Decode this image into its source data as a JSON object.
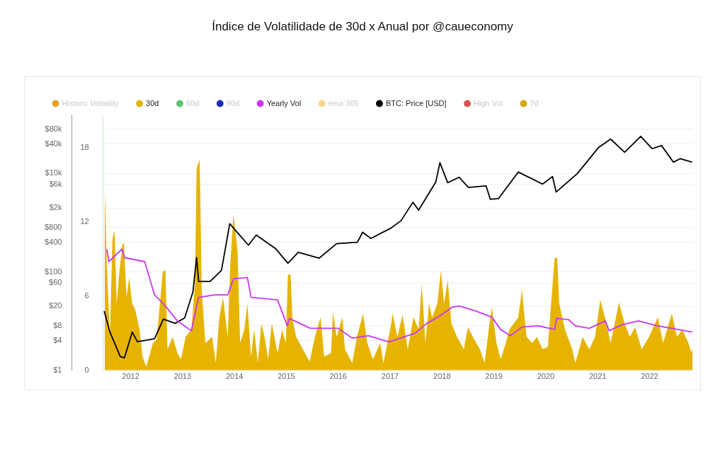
{
  "chart_data": {
    "type": "line",
    "title": "Índice de Volatilidade de 30d x Anual por @caueconomy",
    "legend": "top left",
    "grid": "y",
    "log": "y",
    "marker": "none",
    "line_style": "solid",
    "xlim": [
      2011.47,
      2022.84
    ],
    "xticks": [
      2012,
      2013,
      2014,
      2015,
      2016,
      2017,
      2018,
      2019,
      2020,
      2021,
      2022
    ],
    "ylim": [
      1,
      158000
    ],
    "yticks": [
      {
        "value": 1,
        "label": "$1"
      },
      {
        "value": 4,
        "label": "$4"
      },
      {
        "value": 8,
        "label": "$8"
      },
      {
        "value": 20,
        "label": "$20"
      },
      {
        "value": 60,
        "label": "$60"
      },
      {
        "value": 100,
        "label": "$100"
      },
      {
        "value": 400,
        "label": "$400"
      },
      {
        "value": 800,
        "label": "$800"
      },
      {
        "value": 2000,
        "label": "$2k"
      },
      {
        "value": 6000,
        "label": "$6k"
      },
      {
        "value": 10000,
        "label": "$10k"
      },
      {
        "value": 40000,
        "label": "$40k"
      },
      {
        "value": 80000,
        "label": "$80k"
      }
    ],
    "y2lim": [
      0,
      20.7
    ],
    "y2ticks": [
      0,
      6,
      12,
      18
    ],
    "series": [
      {
        "name": "Historic Volatility",
        "type": "line",
        "axis": "y2",
        "color": "#e8a02a"
      },
      {
        "name": "30d",
        "type": "area",
        "axis": "y2",
        "color": "#e6b400",
        "x": [
          2011.5,
          2011.54,
          2011.6,
          2011.65,
          2011.69,
          2011.73,
          2011.78,
          2011.84,
          2011.87,
          2011.92,
          2011.97,
          2012.03,
          2012.09,
          2012.17,
          2012.23,
          2012.3,
          2012.43,
          2012.5,
          2012.62,
          2012.67,
          2012.71,
          2012.81,
          2012.9,
          2012.97,
          2013.06,
          2013.17,
          2013.24,
          2013.27,
          2013.33,
          2013.37,
          2013.44,
          2013.57,
          2013.64,
          2013.71,
          2013.78,
          2013.87,
          2013.92,
          2013.98,
          2014.06,
          2014.11,
          2014.19,
          2014.25,
          2014.32,
          2014.38,
          2014.45,
          2014.52,
          2014.58,
          2014.65,
          2014.72,
          2014.83,
          2014.92,
          2014.99,
          2015.03,
          2015.08,
          2015.12,
          2015.19,
          2015.32,
          2015.45,
          2015.55,
          2015.66,
          2015.73,
          2015.86,
          2015.9,
          2015.97,
          2016.08,
          2016.13,
          2016.27,
          2016.36,
          2016.48,
          2016.56,
          2016.67,
          2016.81,
          2016.87,
          2017.01,
          2017.05,
          2017.14,
          2017.24,
          2017.34,
          2017.45,
          2017.55,
          2017.61,
          2017.68,
          2017.75,
          2017.81,
          2017.91,
          2017.98,
          2018.04,
          2018.11,
          2018.18,
          2018.29,
          2018.42,
          2018.5,
          2018.62,
          2018.73,
          2018.82,
          2018.93,
          2018.96,
          2019.05,
          2019.13,
          2019.23,
          2019.3,
          2019.47,
          2019.54,
          2019.63,
          2019.74,
          2019.83,
          2019.94,
          2020.04,
          2020.17,
          2020.22,
          2020.26,
          2020.37,
          2020.51,
          2020.57,
          2020.71,
          2020.84,
          2020.95,
          2021.05,
          2021.14,
          2021.25,
          2021.41,
          2021.52,
          2021.62,
          2021.72,
          2021.85,
          2021.99,
          2022.16,
          2022.26,
          2022.43,
          2022.53,
          2022.63,
          2022.75,
          2022.81,
          2022.83
        ],
        "values": [
          14.9,
          8.6,
          2.7,
          10.7,
          11.3,
          5.4,
          7.8,
          10.2,
          10.3,
          5.9,
          7.5,
          5.4,
          4.9,
          3.3,
          1.1,
          0.3,
          2.2,
          2.5,
          8.0,
          8.1,
          1.7,
          2.7,
          1.4,
          0.9,
          2.7,
          3.3,
          7.0,
          16.3,
          17.1,
          6.5,
          2.2,
          2.7,
          0.6,
          4.3,
          5.9,
          2.7,
          8.6,
          12.6,
          9.7,
          2.2,
          3.3,
          5.4,
          1.1,
          3.3,
          0.6,
          3.8,
          2.7,
          0.9,
          3.8,
          1.4,
          3.3,
          2.2,
          7.7,
          7.8,
          4.1,
          2.7,
          1.7,
          0.7,
          2.7,
          4.3,
          1.1,
          1.4,
          4.7,
          2.7,
          4.3,
          1.7,
          0.6,
          2.7,
          4.6,
          2.2,
          0.9,
          2.2,
          0.6,
          3.5,
          4.6,
          2.7,
          4.5,
          1.7,
          4.3,
          3.3,
          7.0,
          2.2,
          5.4,
          4.3,
          5.4,
          8.1,
          5.4,
          7.3,
          3.8,
          2.7,
          1.7,
          3.5,
          2.5,
          1.7,
          0.6,
          4.3,
          5.1,
          2.2,
          0.9,
          2.2,
          3.3,
          4.3,
          6.5,
          2.7,
          2.2,
          2.7,
          1.7,
          1.9,
          9.1,
          9.1,
          5.4,
          3.3,
          1.7,
          0.6,
          2.7,
          1.7,
          2.7,
          5.7,
          4.3,
          2.2,
          5.5,
          3.8,
          2.7,
          3.5,
          1.7,
          2.7,
          4.3,
          2.2,
          4.6,
          2.7,
          3.3,
          2.2,
          1.4,
          1.9
        ]
      },
      {
        "name": "60d",
        "type": "line",
        "axis": "y2",
        "color": "#5cc26a"
      },
      {
        "name": "90d",
        "type": "line",
        "axis": "y2",
        "color": "#1a2eb0"
      },
      {
        "name": "Yearly Vol",
        "type": "line",
        "axis": "y2",
        "color": "#c837f5",
        "x": [
          2011.54,
          2011.58,
          2011.83,
          2011.89,
          2012.27,
          2012.46,
          2012.63,
          2012.9,
          2013.17,
          2013.31,
          2013.62,
          2013.87,
          2013.98,
          2014.25,
          2014.32,
          2014.83,
          2015.02,
          2015.06,
          2015.46,
          2016.0,
          2016.27,
          2016.58,
          2016.98,
          2017.48,
          2017.71,
          2017.92,
          2018.19,
          2018.33,
          2018.65,
          2018.96,
          2019.13,
          2019.32,
          2019.54,
          2019.86,
          2020.17,
          2020.21,
          2020.44,
          2020.57,
          2020.84,
          2021.15,
          2021.22,
          2021.48,
          2021.79,
          2022.15,
          2022.42,
          2022.82
        ],
        "values": [
          9.8,
          8.8,
          9.8,
          9.1,
          8.8,
          6.1,
          5.4,
          4.0,
          3.2,
          5.9,
          6.1,
          6.1,
          7.4,
          7.5,
          5.9,
          5.7,
          3.6,
          4.2,
          3.4,
          3.4,
          2.6,
          2.8,
          2.3,
          3.0,
          3.8,
          4.3,
          5.1,
          5.2,
          4.8,
          4.3,
          3.3,
          2.8,
          3.5,
          3.6,
          3.3,
          4.2,
          4.1,
          3.6,
          3.4,
          4.0,
          3.2,
          3.7,
          4.0,
          3.6,
          3.4,
          3.1
        ]
      },
      {
        "name": "ema 365",
        "type": "line",
        "axis": "y2",
        "color": "#f5d68c"
      },
      {
        "name": "BTC: Price [USD]",
        "type": "line",
        "color": "#000000",
        "x": [
          2011.49,
          2011.6,
          2011.8,
          2011.88,
          2012.03,
          2012.13,
          2012.46,
          2012.63,
          2012.86,
          2013.04,
          2013.2,
          2013.27,
          2013.31,
          2013.53,
          2013.75,
          2013.91,
          2014.02,
          2014.27,
          2014.42,
          2014.79,
          2015.03,
          2015.23,
          2015.63,
          2015.97,
          2016.37,
          2016.47,
          2016.63,
          2017.01,
          2017.21,
          2017.44,
          2017.55,
          2017.88,
          2017.96,
          2018.11,
          2018.33,
          2018.51,
          2018.85,
          2018.93,
          2019.09,
          2019.47,
          2019.94,
          2020.13,
          2020.2,
          2020.61,
          2021.02,
          2021.25,
          2021.52,
          2021.83,
          2022.05,
          2022.23,
          2022.46,
          2022.59,
          2022.82
        ],
        "values": [
          16,
          6,
          1.9,
          1.8,
          6,
          3.8,
          4.4,
          11,
          9,
          11.6,
          39,
          195,
          64,
          64,
          108,
          955,
          700,
          350,
          560,
          300,
          150,
          250,
          190,
          375,
          400,
          640,
          480,
          770,
          1100,
          2600,
          1800,
          6700,
          16600,
          6500,
          8400,
          5200,
          5600,
          3000,
          3100,
          10700,
          6100,
          8700,
          4200,
          10000,
          34000,
          50000,
          27000,
          57000,
          32000,
          37000,
          17000,
          20000,
          17000
        ]
      },
      {
        "name": "High Vol",
        "type": "line",
        "axis": "y2",
        "color": "#d9534f"
      },
      {
        "name": "7d",
        "type": "area",
        "axis": "y2",
        "color": "#d4a80a"
      }
    ]
  }
}
